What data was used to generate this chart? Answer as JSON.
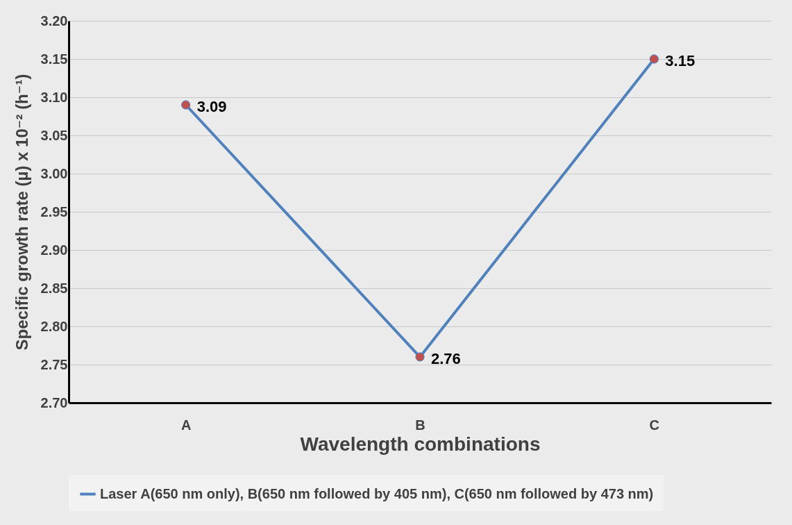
{
  "chart_data": {
    "type": "line",
    "xlabel": "Wavelength combinations",
    "ylabel": "Specific growth rate (µ)  x 10⁻² (h⁻¹)",
    "categories": [
      "A",
      "B",
      "C"
    ],
    "series": [
      {
        "name": "Laser A(650 nm only), B(650 nm followed by 405 nm), C(650 nm followed by 473 nm)",
        "color": "#4f81bd",
        "colors": [
          "#c0504d",
          "#c0504d",
          "#c0504d"
        ],
        "values": [
          3.09,
          2.76,
          3.15
        ]
      }
    ],
    "ylim": [
      2.7,
      3.2
    ],
    "yticks": [
      {
        "value": 2.7,
        "label": "2.70"
      },
      {
        "value": 2.75,
        "label": "2.75"
      },
      {
        "value": 2.8,
        "label": "2.80"
      },
      {
        "value": 2.85,
        "label": "2.85"
      },
      {
        "value": 2.9,
        "label": "2.90"
      },
      {
        "value": 2.95,
        "label": "2.95"
      },
      {
        "value": 3.0,
        "label": "3.00"
      },
      {
        "value": 3.05,
        "label": "3.05"
      },
      {
        "value": 3.1,
        "label": "3.10"
      },
      {
        "value": 3.15,
        "label": "3.15"
      },
      {
        "value": 3.2,
        "label": "3.20"
      }
    ],
    "grid": "y",
    "legend": "bottom",
    "marker": "circle",
    "line_style": "solid",
    "data_labels": true
  }
}
